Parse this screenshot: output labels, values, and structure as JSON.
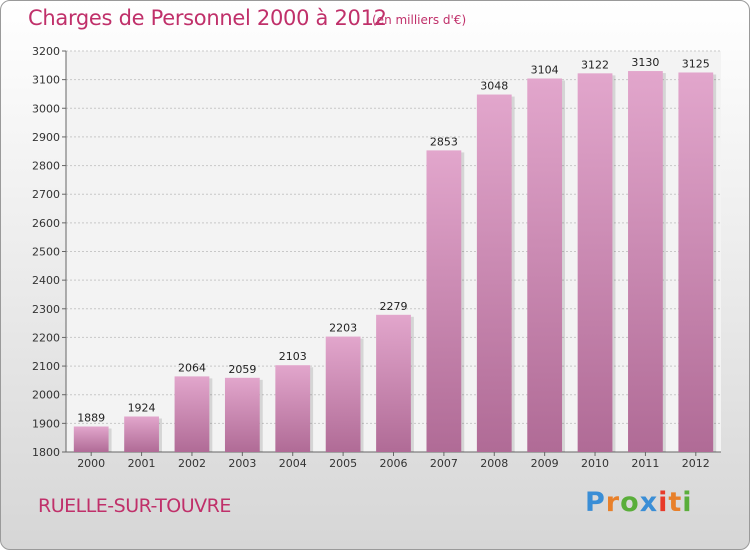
{
  "chart_data": {
    "type": "bar",
    "title": "Charges de Personnel 2000 à 2012",
    "subtitle": "(en milliers d'€)",
    "categories": [
      "2000",
      "2001",
      "2002",
      "2003",
      "2004",
      "2005",
      "2006",
      "2007",
      "2008",
      "2009",
      "2010",
      "2011",
      "2012"
    ],
    "values": [
      1889,
      1924,
      2064,
      2059,
      2103,
      2203,
      2279,
      2853,
      3048,
      3104,
      3122,
      3130,
      3125
    ],
    "value_labels": [
      "1889",
      "1924",
      "2064",
      "2059",
      "2103",
      "2203",
      "2279",
      "2853",
      "3048",
      "3104",
      "3122",
      "3130",
      "3125"
    ],
    "y_ticks": [
      "1800",
      "1900",
      "2000",
      "2100",
      "2200",
      "2300",
      "2400",
      "2500",
      "2600",
      "2700",
      "2800",
      "2900",
      "3000",
      "3100",
      "3200"
    ],
    "ylim": [
      1800,
      3200
    ],
    "xlabel": "",
    "ylabel": "",
    "grid": true,
    "bar_color_top": "#e2a6cc",
    "bar_color_bottom": "#b06b96"
  },
  "footer": {
    "commune": "RUELLE-SUR-TOUVRE",
    "logo_letters": [
      "P",
      "r",
      "o",
      "x",
      "i",
      "t",
      "i"
    ],
    "logo_colors": [
      "#3a8ed6",
      "#e8802a",
      "#5aae3a",
      "#3a8ed6",
      "#e83a2a",
      "#e8802a",
      "#5aae3a"
    ]
  },
  "colors": {
    "title": "#c0306a",
    "accent": "#c0306a"
  }
}
